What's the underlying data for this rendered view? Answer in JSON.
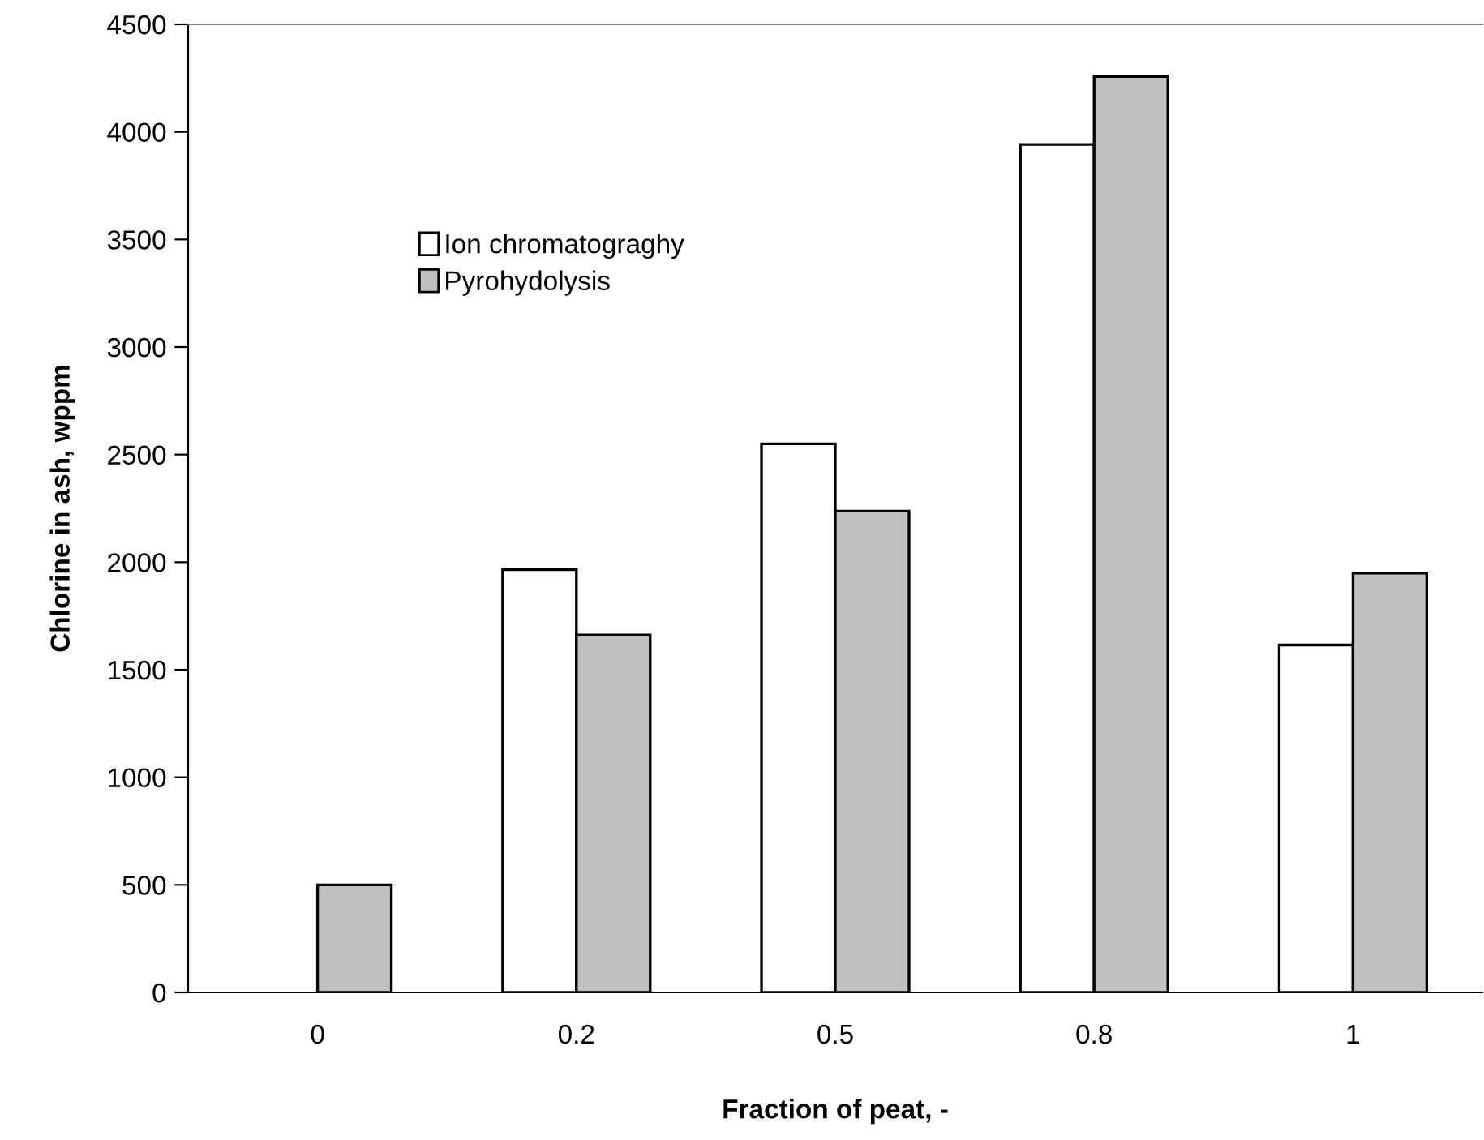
{
  "chart_data": {
    "type": "bar",
    "xlabel": "Fraction of peat, -",
    "ylabel": "Chlorine in ash, wppm",
    "categories": [
      "0",
      "0.2",
      "0.5",
      "0.8",
      "1"
    ],
    "series": [
      {
        "name": "Ion chromatograghy",
        "color": "#ffffff",
        "values": [
          null,
          1965,
          2550,
          3942,
          1615
        ]
      },
      {
        "name": "Pyrohydolysis",
        "color": "#c0c0c0",
        "values": [
          500,
          1661,
          2237,
          4258,
          1949
        ]
      }
    ],
    "ylim": [
      0,
      4500
    ],
    "yticks": [
      0,
      500,
      1000,
      1500,
      2000,
      2500,
      3000,
      3500,
      4000,
      4500
    ],
    "grid": false,
    "legend": "top left"
  }
}
